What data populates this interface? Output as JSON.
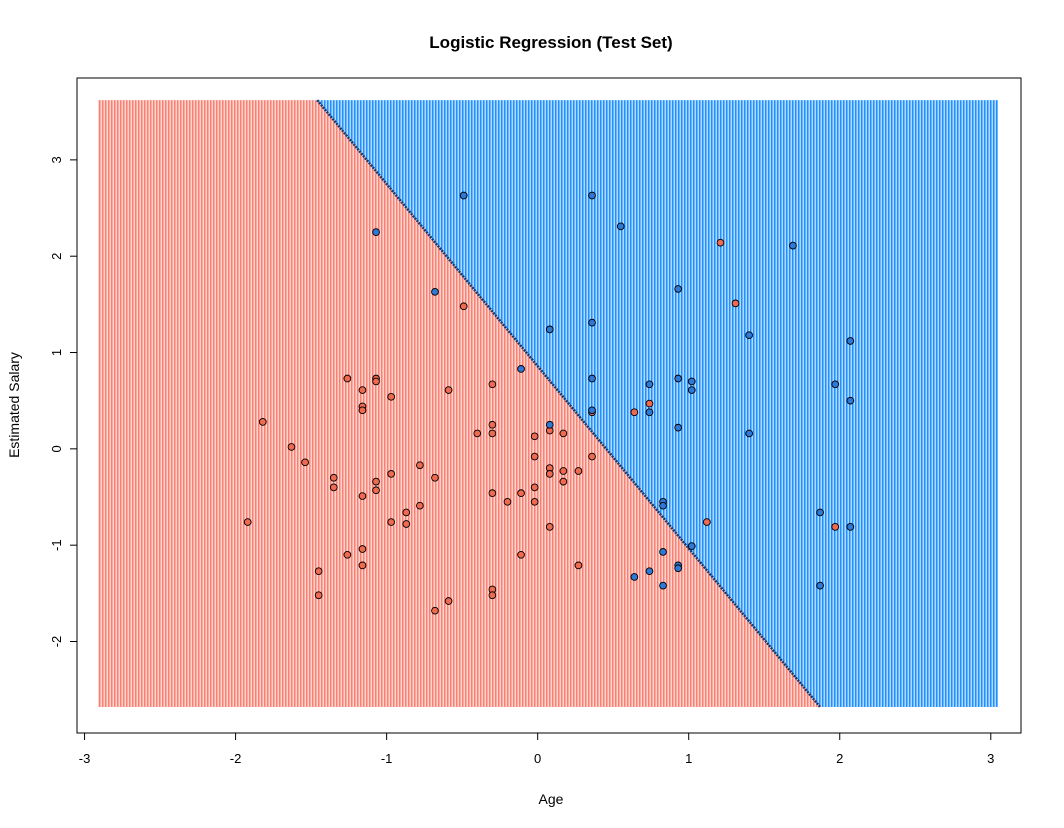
{
  "chart_data": {
    "type": "scatter",
    "title": "Logistic Regression (Test Set)",
    "xlabel": "Age",
    "ylabel": "Estimated Salary",
    "xlim": [
      -3.05,
      3.2
    ],
    "ylim": [
      -2.95,
      3.85
    ],
    "grid_xlim": [
      -2.9,
      3.05
    ],
    "grid_ylim": [
      -2.68,
      3.62
    ],
    "x_ticks": [
      "-3",
      "-2",
      "-1",
      "0",
      "1",
      "2",
      "3"
    ],
    "y_ticks": [
      "-2",
      "-1",
      "0",
      "1",
      "2",
      "3"
    ],
    "x_tick_values": [
      -3,
      -2,
      -1,
      0,
      1,
      2,
      3
    ],
    "y_tick_values": [
      -2,
      -1,
      0,
      1,
      2,
      3
    ],
    "decision_boundary": {
      "points": [
        [
          -1.46,
          3.62
        ],
        [
          1.87,
          -2.68
        ]
      ]
    },
    "colors": {
      "region_0": "#fa8072",
      "region_1": "#1e90ff",
      "point_0": "#ee6a50",
      "point_1": "#2e79d6",
      "point_edge": "#000000"
    },
    "points": [
      {
        "x": -1.92,
        "y": -0.76,
        "class": 0
      },
      {
        "x": -1.82,
        "y": 0.28,
        "class": 0
      },
      {
        "x": -1.63,
        "y": 0.02,
        "class": 0
      },
      {
        "x": -1.54,
        "y": -0.14,
        "class": 0
      },
      {
        "x": -1.45,
        "y": -1.27,
        "class": 0
      },
      {
        "x": -1.45,
        "y": -1.52,
        "class": 0
      },
      {
        "x": -1.35,
        "y": -0.3,
        "class": 0
      },
      {
        "x": -1.35,
        "y": -0.4,
        "class": 0
      },
      {
        "x": -1.26,
        "y": 0.73,
        "class": 0
      },
      {
        "x": -1.26,
        "y": -1.1,
        "class": 0
      },
      {
        "x": -1.16,
        "y": 0.61,
        "class": 0
      },
      {
        "x": -1.16,
        "y": 0.44,
        "class": 0
      },
      {
        "x": -1.16,
        "y": 0.4,
        "class": 0
      },
      {
        "x": -1.16,
        "y": -0.49,
        "class": 0
      },
      {
        "x": -1.16,
        "y": -1.04,
        "class": 0
      },
      {
        "x": -1.16,
        "y": -1.21,
        "class": 0
      },
      {
        "x": -1.07,
        "y": 0.73,
        "class": 0
      },
      {
        "x": -1.07,
        "y": 0.7,
        "class": 0
      },
      {
        "x": -1.07,
        "y": -0.34,
        "class": 0
      },
      {
        "x": -1.07,
        "y": -0.43,
        "class": 0
      },
      {
        "x": -0.97,
        "y": 0.54,
        "class": 0
      },
      {
        "x": -0.97,
        "y": -0.26,
        "class": 0
      },
      {
        "x": -0.97,
        "y": -0.76,
        "class": 0
      },
      {
        "x": -0.87,
        "y": -0.66,
        "class": 0
      },
      {
        "x": -0.87,
        "y": -0.78,
        "class": 0
      },
      {
        "x": -0.78,
        "y": -0.17,
        "class": 0
      },
      {
        "x": -0.78,
        "y": -0.59,
        "class": 0
      },
      {
        "x": -0.68,
        "y": -0.3,
        "class": 0
      },
      {
        "x": -0.68,
        "y": -1.68,
        "class": 0
      },
      {
        "x": -0.59,
        "y": 0.61,
        "class": 0
      },
      {
        "x": -0.59,
        "y": -1.58,
        "class": 0
      },
      {
        "x": -0.49,
        "y": 1.48,
        "class": 0
      },
      {
        "x": -0.4,
        "y": 0.16,
        "class": 0
      },
      {
        "x": -0.3,
        "y": 0.67,
        "class": 0
      },
      {
        "x": -0.3,
        "y": 0.25,
        "class": 0
      },
      {
        "x": -0.3,
        "y": 0.16,
        "class": 0
      },
      {
        "x": -0.3,
        "y": -0.46,
        "class": 0
      },
      {
        "x": -0.3,
        "y": -1.46,
        "class": 0
      },
      {
        "x": -0.3,
        "y": -1.52,
        "class": 0
      },
      {
        "x": -0.2,
        "y": -0.55,
        "class": 0
      },
      {
        "x": -0.11,
        "y": -0.46,
        "class": 0
      },
      {
        "x": -0.11,
        "y": -1.1,
        "class": 0
      },
      {
        "x": -0.02,
        "y": 0.13,
        "class": 0
      },
      {
        "x": -0.02,
        "y": -0.08,
        "class": 0
      },
      {
        "x": -0.02,
        "y": -0.4,
        "class": 0
      },
      {
        "x": -0.02,
        "y": -0.55,
        "class": 0
      },
      {
        "x": 0.08,
        "y": 0.19,
        "class": 0
      },
      {
        "x": 0.08,
        "y": -0.2,
        "class": 0
      },
      {
        "x": 0.08,
        "y": -0.26,
        "class": 0
      },
      {
        "x": 0.08,
        "y": -0.81,
        "class": 0
      },
      {
        "x": 0.17,
        "y": 0.16,
        "class": 0
      },
      {
        "x": 0.17,
        "y": -0.23,
        "class": 0
      },
      {
        "x": 0.17,
        "y": -0.34,
        "class": 0
      },
      {
        "x": 0.27,
        "y": -0.23,
        "class": 0
      },
      {
        "x": 0.27,
        "y": -1.21,
        "class": 0
      },
      {
        "x": 0.36,
        "y": 0.38,
        "class": 0
      },
      {
        "x": 0.36,
        "y": -0.08,
        "class": 0
      },
      {
        "x": 0.64,
        "y": 0.38,
        "class": 0
      },
      {
        "x": 0.74,
        "y": 0.47,
        "class": 0
      },
      {
        "x": 1.12,
        "y": -0.76,
        "class": 0
      },
      {
        "x": 1.21,
        "y": 2.14,
        "class": 0
      },
      {
        "x": 1.31,
        "y": 1.51,
        "class": 0
      },
      {
        "x": 1.97,
        "y": -0.81,
        "class": 0
      },
      {
        "x": -1.07,
        "y": 2.25,
        "class": 1
      },
      {
        "x": -0.68,
        "y": 1.63,
        "class": 1
      },
      {
        "x": -0.49,
        "y": 2.63,
        "class": 1
      },
      {
        "x": -0.11,
        "y": 0.83,
        "class": 1
      },
      {
        "x": 0.08,
        "y": 1.24,
        "class": 1
      },
      {
        "x": 0.08,
        "y": 0.25,
        "class": 1
      },
      {
        "x": 0.36,
        "y": 2.63,
        "class": 1
      },
      {
        "x": 0.36,
        "y": 1.31,
        "class": 1
      },
      {
        "x": 0.36,
        "y": 0.73,
        "class": 1
      },
      {
        "x": 0.36,
        "y": 0.4,
        "class": 1
      },
      {
        "x": 0.55,
        "y": 2.31,
        "class": 1
      },
      {
        "x": 0.64,
        "y": -1.33,
        "class": 1
      },
      {
        "x": 0.74,
        "y": 0.67,
        "class": 1
      },
      {
        "x": 0.74,
        "y": 0.38,
        "class": 1
      },
      {
        "x": 0.74,
        "y": -1.27,
        "class": 1
      },
      {
        "x": 0.83,
        "y": -0.55,
        "class": 1
      },
      {
        "x": 0.83,
        "y": -0.59,
        "class": 1
      },
      {
        "x": 0.83,
        "y": -1.07,
        "class": 1
      },
      {
        "x": 0.83,
        "y": -1.42,
        "class": 1
      },
      {
        "x": 0.93,
        "y": 1.66,
        "class": 1
      },
      {
        "x": 0.93,
        "y": 0.73,
        "class": 1
      },
      {
        "x": 0.93,
        "y": 0.22,
        "class": 1
      },
      {
        "x": 0.93,
        "y": -1.21,
        "class": 1
      },
      {
        "x": 0.93,
        "y": -1.24,
        "class": 1
      },
      {
        "x": 1.02,
        "y": 0.7,
        "class": 1
      },
      {
        "x": 1.02,
        "y": 0.61,
        "class": 1
      },
      {
        "x": 1.02,
        "y": -1.01,
        "class": 1
      },
      {
        "x": 1.4,
        "y": 1.18,
        "class": 1
      },
      {
        "x": 1.4,
        "y": 0.16,
        "class": 1
      },
      {
        "x": 1.69,
        "y": 2.11,
        "class": 1
      },
      {
        "x": 1.87,
        "y": -0.66,
        "class": 1
      },
      {
        "x": 1.87,
        "y": -1.42,
        "class": 1
      },
      {
        "x": 1.97,
        "y": 0.67,
        "class": 1
      },
      {
        "x": 2.07,
        "y": 1.12,
        "class": 1
      },
      {
        "x": 2.07,
        "y": 0.5,
        "class": 1
      },
      {
        "x": 2.07,
        "y": -0.81,
        "class": 1
      }
    ]
  }
}
